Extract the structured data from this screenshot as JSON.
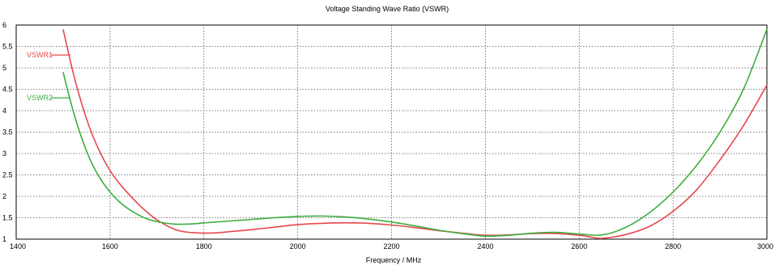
{
  "chart_data": {
    "type": "line",
    "title": "Voltage Standing Wave Ratio (VSWR)",
    "xlabel": "Frequency / MHz",
    "ylabel": "",
    "xlim": [
      1400,
      3000
    ],
    "ylim": [
      1,
      6
    ],
    "xticks": [
      1400,
      1600,
      1800,
      2000,
      2200,
      2400,
      2600,
      2800,
      3000
    ],
    "yticks": [
      1,
      1.5,
      2,
      2.5,
      3,
      3.5,
      4,
      4.5,
      5,
      5.5,
      6
    ],
    "grid": true,
    "legend": "inline-left",
    "series": [
      {
        "name": "VSWR1",
        "color": "#e8474c",
        "x": [
          1500,
          1520,
          1540,
          1560,
          1580,
          1600,
          1620,
          1640,
          1660,
          1680,
          1700,
          1720,
          1740,
          1760,
          1780,
          1800,
          1830,
          1860,
          1900,
          1950,
          2000,
          2050,
          2100,
          2150,
          2200,
          2250,
          2300,
          2350,
          2400,
          2450,
          2500,
          2550,
          2600,
          2630,
          2650,
          2700,
          2750,
          2800,
          2850,
          2900,
          2950,
          3000
        ],
        "values": [
          5.9,
          4.95,
          4.15,
          3.5,
          3.0,
          2.6,
          2.3,
          2.05,
          1.82,
          1.62,
          1.45,
          1.32,
          1.22,
          1.17,
          1.15,
          1.14,
          1.15,
          1.18,
          1.22,
          1.28,
          1.34,
          1.37,
          1.38,
          1.37,
          1.33,
          1.27,
          1.2,
          1.14,
          1.09,
          1.1,
          1.13,
          1.13,
          1.09,
          1.04,
          1.02,
          1.11,
          1.3,
          1.65,
          2.15,
          2.85,
          3.65,
          4.6
        ]
      },
      {
        "name": "VSWR2",
        "color": "#3cae3f",
        "x": [
          1500,
          1520,
          1540,
          1560,
          1580,
          1600,
          1620,
          1640,
          1660,
          1680,
          1700,
          1720,
          1740,
          1760,
          1780,
          1800,
          1850,
          1900,
          1950,
          2000,
          2050,
          2100,
          2150,
          2200,
          2250,
          2300,
          2350,
          2400,
          2450,
          2500,
          2550,
          2600,
          2650,
          2700,
          2750,
          2800,
          2850,
          2900,
          2950,
          3000
        ],
        "values": [
          4.9,
          4.05,
          3.35,
          2.8,
          2.4,
          2.1,
          1.87,
          1.7,
          1.57,
          1.47,
          1.41,
          1.37,
          1.35,
          1.35,
          1.36,
          1.38,
          1.42,
          1.46,
          1.5,
          1.53,
          1.54,
          1.52,
          1.47,
          1.4,
          1.31,
          1.21,
          1.13,
          1.07,
          1.09,
          1.14,
          1.16,
          1.12,
          1.1,
          1.28,
          1.62,
          2.1,
          2.72,
          3.5,
          4.5,
          5.9
        ]
      }
    ]
  }
}
